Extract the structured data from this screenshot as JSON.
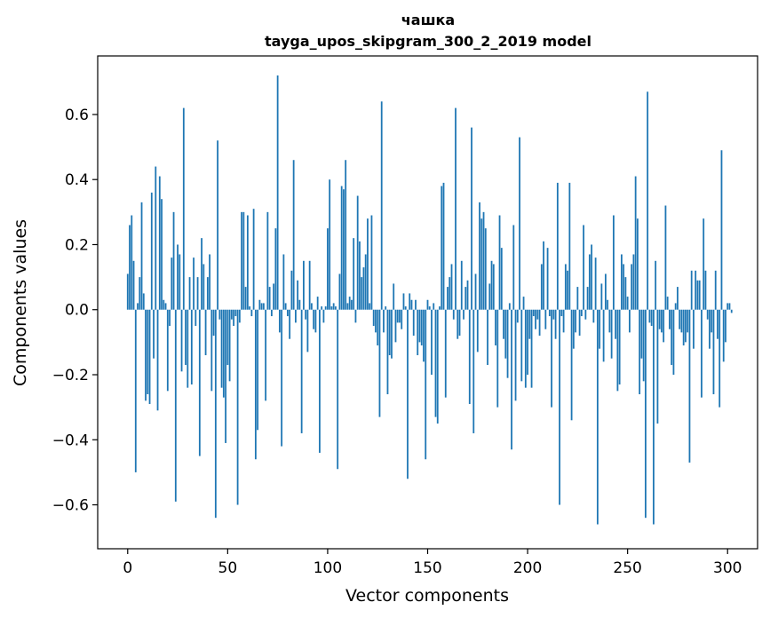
{
  "chart_data": {
    "type": "bar",
    "title": "чашка",
    "subtitle": "tayga_upos_skipgram_300_2_2019 model",
    "xlabel": "Vector components",
    "ylabel": "Components values",
    "xlim": [
      -15,
      315
    ],
    "ylim": [
      -0.735,
      0.78
    ],
    "xticks": [
      0,
      50,
      100,
      150,
      200,
      250,
      300
    ],
    "yticks": [
      -0.6,
      -0.4,
      -0.2,
      0.0,
      0.2,
      0.4,
      0.6
    ],
    "ytick_labels": [
      "−0.6",
      "−0.4",
      "−0.2",
      "0.0",
      "0.2",
      "0.4",
      "0.6"
    ],
    "bar_color": "#1f77b4",
    "values": [
      0.11,
      0.26,
      0.29,
      0.15,
      -0.5,
      0.02,
      0.1,
      0.33,
      0.05,
      -0.28,
      -0.26,
      -0.29,
      0.36,
      -0.15,
      0.44,
      -0.31,
      0.41,
      0.34,
      0.03,
      0.02,
      -0.25,
      -0.05,
      0.16,
      0.3,
      -0.59,
      0.2,
      0.17,
      -0.19,
      0.62,
      -0.17,
      -0.24,
      0.1,
      -0.23,
      0.16,
      -0.05,
      0.1,
      -0.45,
      0.22,
      0.14,
      -0.14,
      0.1,
      0.17,
      -0.25,
      -0.08,
      -0.64,
      0.52,
      -0.03,
      -0.24,
      -0.27,
      -0.41,
      -0.17,
      -0.22,
      -0.03,
      -0.05,
      -0.02,
      -0.6,
      -0.04,
      0.3,
      0.3,
      0.07,
      0.29,
      0.01,
      -0.02,
      0.31,
      -0.46,
      -0.37,
      0.03,
      0.02,
      0.02,
      -0.28,
      0.3,
      0.07,
      -0.02,
      0.08,
      0.25,
      0.72,
      -0.07,
      -0.42,
      0.17,
      0.02,
      -0.02,
      -0.09,
      0.12,
      0.46,
      -0.04,
      0.09,
      0.03,
      -0.38,
      0.15,
      -0.03,
      -0.13,
      0.15,
      0.02,
      -0.06,
      -0.07,
      0.04,
      -0.44,
      0.01,
      -0.04,
      0.01,
      0.25,
      0.4,
      0.01,
      0.02,
      0.01,
      -0.49,
      0.11,
      0.38,
      0.37,
      0.46,
      0.02,
      0.04,
      0.03,
      0.22,
      -0.04,
      0.35,
      0.21,
      0.1,
      0.13,
      0.17,
      0.28,
      0.02,
      0.29,
      -0.05,
      -0.07,
      -0.11,
      -0.33,
      0.64,
      -0.07,
      0.01,
      -0.26,
      -0.14,
      -0.15,
      0.08,
      -0.1,
      -0.04,
      -0.04,
      -0.06,
      0.05,
      0.01,
      -0.52,
      0.05,
      0.03,
      -0.08,
      0.03,
      -0.14,
      -0.1,
      -0.11,
      -0.16,
      -0.46,
      0.03,
      0.01,
      -0.2,
      0.02,
      -0.33,
      -0.35,
      0.01,
      0.38,
      0.39,
      -0.27,
      0.07,
      0.1,
      0.14,
      -0.03,
      0.62,
      -0.09,
      -0.08,
      0.15,
      -0.03,
      0.07,
      0.09,
      -0.29,
      0.56,
      -0.38,
      0.11,
      -0.13,
      0.33,
      0.28,
      0.3,
      0.25,
      -0.17,
      0.08,
      0.15,
      0.14,
      -0.11,
      -0.3,
      0.29,
      0.19,
      -0.09,
      -0.15,
      -0.21,
      0.02,
      -0.43,
      0.26,
      -0.28,
      -0.04,
      0.53,
      -0.22,
      0.04,
      -0.24,
      -0.2,
      -0.09,
      -0.24,
      -0.02,
      -0.06,
      -0.03,
      -0.08,
      0.14,
      0.21,
      -0.06,
      0.19,
      -0.02,
      -0.3,
      -0.03,
      -0.09,
      0.39,
      -0.6,
      -0.02,
      -0.07,
      0.14,
      0.12,
      0.39,
      -0.34,
      -0.12,
      -0.07,
      0.07,
      -0.08,
      -0.02,
      0.26,
      -0.03,
      0.07,
      0.17,
      0.2,
      -0.04,
      0.16,
      -0.66,
      -0.12,
      0.08,
      -0.16,
      0.11,
      0.03,
      -0.07,
      -0.15,
      0.29,
      -0.09,
      -0.25,
      -0.23,
      0.17,
      0.14,
      0.1,
      0.04,
      -0.07,
      0.14,
      0.17,
      0.41,
      0.28,
      -0.26,
      -0.15,
      -0.22,
      -0.64,
      0.67,
      -0.04,
      -0.05,
      -0.66,
      0.15,
      -0.35,
      -0.06,
      -0.07,
      -0.1,
      0.32,
      0.04,
      -0.06,
      -0.17,
      -0.2,
      0.02,
      0.07,
      -0.06,
      -0.07,
      -0.11,
      -0.1,
      -0.07,
      -0.47,
      0.12,
      -0.12,
      0.12,
      0.09,
      0.09,
      -0.27,
      0.28,
      0.12,
      -0.03,
      -0.12,
      -0.07,
      -0.26,
      0.12,
      -0.09,
      -0.3,
      0.49,
      -0.16,
      -0.1,
      0.02,
      0.02,
      -0.01
    ]
  }
}
